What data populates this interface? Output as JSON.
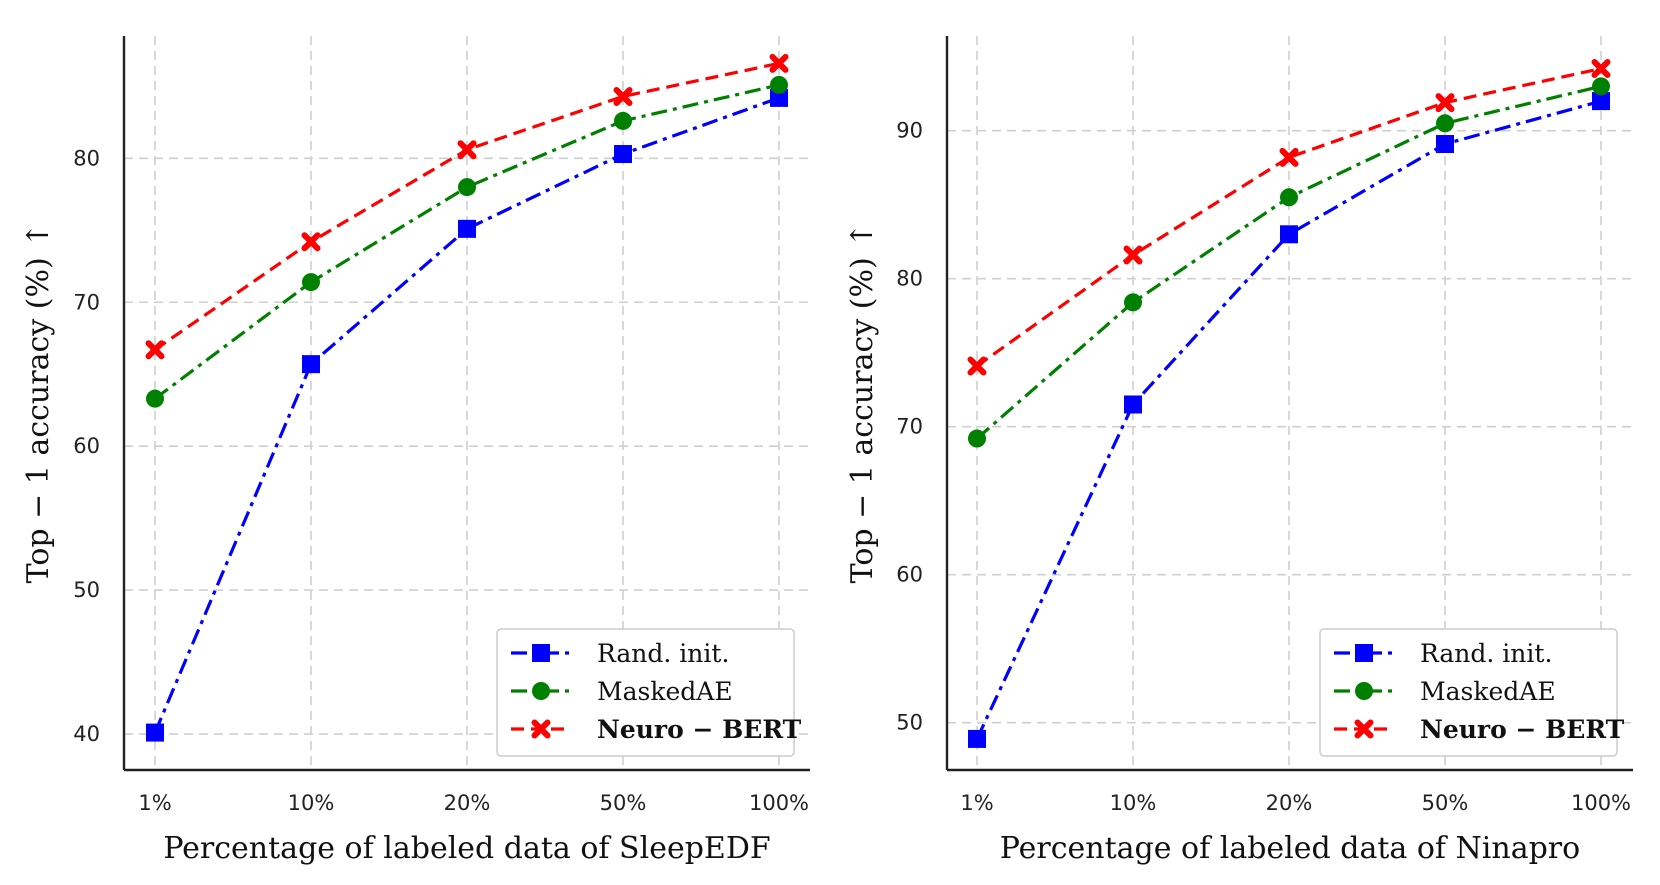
{
  "chart_data": [
    {
      "type": "line",
      "categories": [
        "1%",
        "10%",
        "20%",
        "50%",
        "100%"
      ],
      "xlabel": "Percentage of labeled data of SleepEDF",
      "ylabel": "Top − 1 accuracy (%) ↑",
      "ylim": [
        37.5,
        88.5
      ],
      "yticks": [
        40,
        50,
        60,
        70,
        80
      ],
      "grid": true,
      "legend_position": "bottom-right",
      "series": [
        {
          "name": "Rand. init.",
          "values": [
            40.1,
            65.7,
            75.1,
            80.3,
            84.2
          ],
          "color": "#0000ff",
          "marker": "square",
          "dash": "dash-dot",
          "bold": false
        },
        {
          "name": "MaskedAE",
          "values": [
            63.3,
            71.4,
            78.0,
            82.6,
            85.1
          ],
          "color": "#008000",
          "marker": "circle",
          "dash": "dash-dot",
          "bold": false
        },
        {
          "name": "Neuro − BERT",
          "values": [
            66.7,
            74.2,
            80.6,
            84.3,
            86.6
          ],
          "color": "#ff0000",
          "marker": "x",
          "dash": "dashed",
          "bold": true
        }
      ]
    },
    {
      "type": "line",
      "categories": [
        "1%",
        "10%",
        "20%",
        "50%",
        "100%"
      ],
      "xlabel": "Percentage of labeled data of Ninapro",
      "ylabel": "Top − 1 accuracy (%) ↑",
      "ylim": [
        46.8,
        96.4
      ],
      "yticks": [
        50,
        60,
        70,
        80,
        90
      ],
      "grid": true,
      "legend_position": "bottom-right",
      "series": [
        {
          "name": "Rand. init.",
          "values": [
            48.9,
            71.5,
            83.0,
            89.1,
            92.0
          ],
          "color": "#0000ff",
          "marker": "square",
          "dash": "dash-dot",
          "bold": false
        },
        {
          "name": "MaskedAE",
          "values": [
            69.2,
            78.4,
            85.5,
            90.5,
            93.0
          ],
          "color": "#008000",
          "marker": "circle",
          "dash": "dash-dot",
          "bold": false
        },
        {
          "name": "Neuro − BERT",
          "values": [
            74.1,
            81.6,
            88.2,
            91.9,
            94.2
          ],
          "color": "#ff0000",
          "marker": "x",
          "dash": "dashed",
          "bold": true
        }
      ]
    }
  ]
}
